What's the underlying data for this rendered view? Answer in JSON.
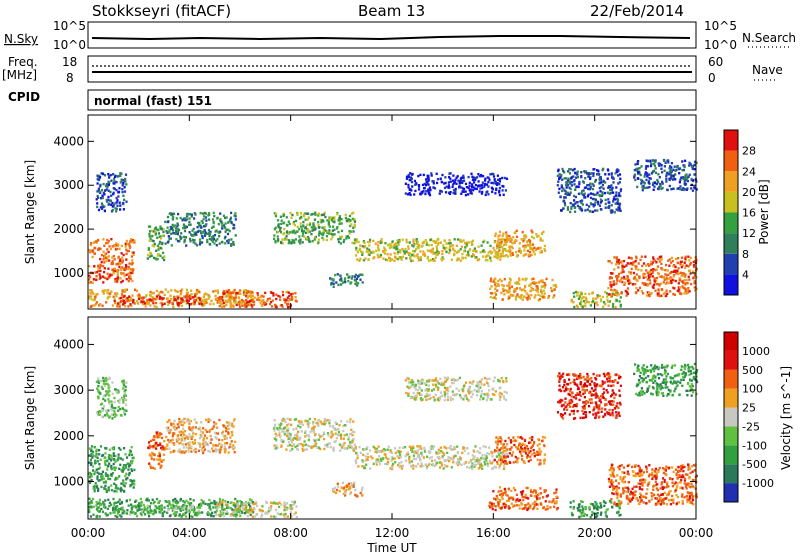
{
  "header": {
    "site": "Stokkseyri (fitACF)",
    "beam": "Beam 13",
    "date": "22/Feb/2014"
  },
  "top_panels": {
    "nsky_label": "N.Sky",
    "nsky_ticks": [
      "10^5",
      "10^0"
    ],
    "nsearch_label": "N.Search",
    "nsearch_ticks": [
      "10^5",
      "10^0"
    ],
    "freq_label": "Freq.",
    "freq_unit": "[MHz]",
    "freq_ticks": [
      "18",
      "8"
    ],
    "nave_label": "Nave",
    "nave_ticks": [
      "60",
      "0"
    ],
    "cpid_label": "CPID",
    "cpid_value": "normal (fast) 151"
  },
  "time_axis": {
    "xlabel": "Time UT",
    "tick_labels": [
      "00:00",
      "04:00",
      "08:00",
      "12:00",
      "16:00",
      "20:00",
      "00:00"
    ]
  },
  "chart_data": [
    {
      "type": "heatmap",
      "title": "",
      "ylabel": "Slant Range [km]",
      "xlabel": "",
      "y_tick_labels": [
        "1000",
        "2000",
        "3000",
        "4000"
      ],
      "xlim": [
        0,
        24
      ],
      "ylim": [
        180,
        4600
      ],
      "colorbar": {
        "label": "Power [dB]",
        "tick_labels": [
          "4",
          "8",
          "12",
          "16",
          "20",
          "24",
          "28"
        ],
        "colors": [
          "#1010e0",
          "#2040b0",
          "#2f7f5a",
          "#35a040",
          "#c8c020",
          "#f0a020",
          "#f06010",
          "#e01010"
        ]
      },
      "regions": [
        {
          "t0": 0.0,
          "t1": 1.8,
          "r0": 800,
          "r1": 1800,
          "level": 6
        },
        {
          "t0": 0.0,
          "t1": 6.5,
          "r0": 250,
          "r1": 650,
          "level": 5
        },
        {
          "t0": 1.0,
          "t1": 4.5,
          "r0": 300,
          "r1": 500,
          "level": 7
        },
        {
          "t0": 2.3,
          "t1": 3.0,
          "r0": 1300,
          "r1": 2100,
          "level": 3
        },
        {
          "t0": 3.0,
          "t1": 5.8,
          "r0": 1650,
          "r1": 2400,
          "level": 2
        },
        {
          "t0": 0.3,
          "t1": 1.5,
          "r0": 2400,
          "r1": 3300,
          "level": 1
        },
        {
          "t0": 5.0,
          "t1": 8.2,
          "r0": 250,
          "r1": 600,
          "level": 6
        },
        {
          "t0": 7.3,
          "t1": 10.5,
          "r0": 1700,
          "r1": 2400,
          "level": 3
        },
        {
          "t0": 10.5,
          "t1": 16.5,
          "r0": 1300,
          "r1": 1800,
          "level": 4
        },
        {
          "t0": 16.0,
          "t1": 18.0,
          "r0": 1400,
          "r1": 2000,
          "level": 5
        },
        {
          "t0": 15.8,
          "t1": 18.5,
          "r0": 400,
          "r1": 900,
          "level": 5
        },
        {
          "t0": 19.0,
          "t1": 21.0,
          "r0": 250,
          "r1": 600,
          "level": 4
        },
        {
          "t0": 20.5,
          "t1": 24.0,
          "r0": 500,
          "r1": 1400,
          "level": 6
        },
        {
          "t0": 12.5,
          "t1": 16.5,
          "r0": 2800,
          "r1": 3300,
          "level": 0
        },
        {
          "t0": 18.5,
          "t1": 21.0,
          "r0": 2400,
          "r1": 3400,
          "level": 1
        },
        {
          "t0": 21.5,
          "t1": 24.0,
          "r0": 2900,
          "r1": 3600,
          "level": 1
        },
        {
          "t0": 9.5,
          "t1": 10.8,
          "r0": 700,
          "r1": 1000,
          "level": 2
        }
      ]
    },
    {
      "type": "heatmap",
      "title": "",
      "ylabel": "Slant Range [km]",
      "xlabel": "Time UT",
      "y_tick_labels": [
        "1000",
        "2000",
        "3000",
        "4000"
      ],
      "xlim": [
        0,
        24
      ],
      "ylim": [
        180,
        4600
      ],
      "colorbar": {
        "label": "Velocity [m s^-1]",
        "tick_labels": [
          "1000",
          "500",
          "100",
          "25",
          "-25",
          "-100",
          "-500",
          "-1000"
        ],
        "colors": [
          "#2030b0",
          "#2a7a5a",
          "#30a040",
          "#60c040",
          "#c8c8c0",
          "#f0a020",
          "#f06010",
          "#e01010",
          "#d00000"
        ]
      },
      "regions": [
        {
          "t0": 0.0,
          "t1": 1.8,
          "r0": 800,
          "r1": 1800,
          "level": 2
        },
        {
          "t0": 0.0,
          "t1": 6.5,
          "r0": 250,
          "r1": 650,
          "level": 2
        },
        {
          "t0": 1.0,
          "t1": 4.5,
          "r0": 300,
          "r1": 500,
          "level": 3
        },
        {
          "t0": 2.3,
          "t1": 3.0,
          "r0": 1300,
          "r1": 2100,
          "level": 6
        },
        {
          "t0": 3.0,
          "t1": 5.8,
          "r0": 1650,
          "r1": 2400,
          "level": 5
        },
        {
          "t0": 0.3,
          "t1": 1.5,
          "r0": 2400,
          "r1": 3300,
          "level": 3
        },
        {
          "t0": 5.0,
          "t1": 8.2,
          "r0": 250,
          "r1": 600,
          "level": 4
        },
        {
          "t0": 7.3,
          "t1": 10.5,
          "r0": 1700,
          "r1": 2400,
          "level": 4
        },
        {
          "t0": 10.5,
          "t1": 16.5,
          "r0": 1300,
          "r1": 1800,
          "level": 4
        },
        {
          "t0": 16.0,
          "t1": 18.0,
          "r0": 1400,
          "r1": 2000,
          "level": 6
        },
        {
          "t0": 15.8,
          "t1": 18.5,
          "r0": 400,
          "r1": 900,
          "level": 6
        },
        {
          "t0": 19.0,
          "t1": 21.0,
          "r0": 250,
          "r1": 600,
          "level": 2
        },
        {
          "t0": 20.5,
          "t1": 24.0,
          "r0": 500,
          "r1": 1400,
          "level": 6
        },
        {
          "t0": 12.5,
          "t1": 16.5,
          "r0": 2800,
          "r1": 3300,
          "level": 4
        },
        {
          "t0": 18.5,
          "t1": 21.0,
          "r0": 2400,
          "r1": 3400,
          "level": 7
        },
        {
          "t0": 21.5,
          "t1": 24.0,
          "r0": 2900,
          "r1": 3600,
          "level": 2
        },
        {
          "t0": 9.5,
          "t1": 10.8,
          "r0": 700,
          "r1": 1000,
          "level": 5
        }
      ]
    }
  ]
}
